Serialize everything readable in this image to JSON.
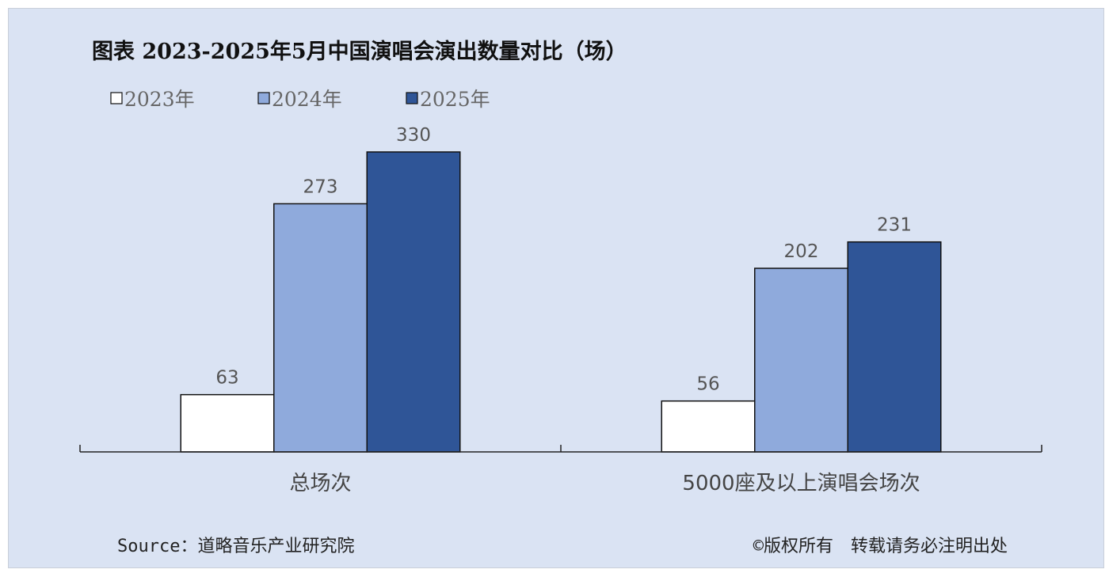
{
  "chart_data": {
    "type": "bar",
    "title": "图表 2023-2025年5月中国演唱会演出数量对比（场）",
    "categories": [
      "总场次",
      "5000座及以上演唱会场次"
    ],
    "series": [
      {
        "name": "2023年",
        "values": [
          63,
          56
        ],
        "color": "#ffffff"
      },
      {
        "name": "2024年",
        "values": [
          273,
          202
        ],
        "color": "#8faadc"
      },
      {
        "name": "2025年",
        "values": [
          330,
          231
        ],
        "color": "#2f5597"
      }
    ],
    "ylim": [
      0,
      330
    ],
    "legend": "top-left",
    "grid": false,
    "source": "Source：道略音乐产业研究院",
    "copyright": "©版权所有　转载请务必注明出处"
  }
}
